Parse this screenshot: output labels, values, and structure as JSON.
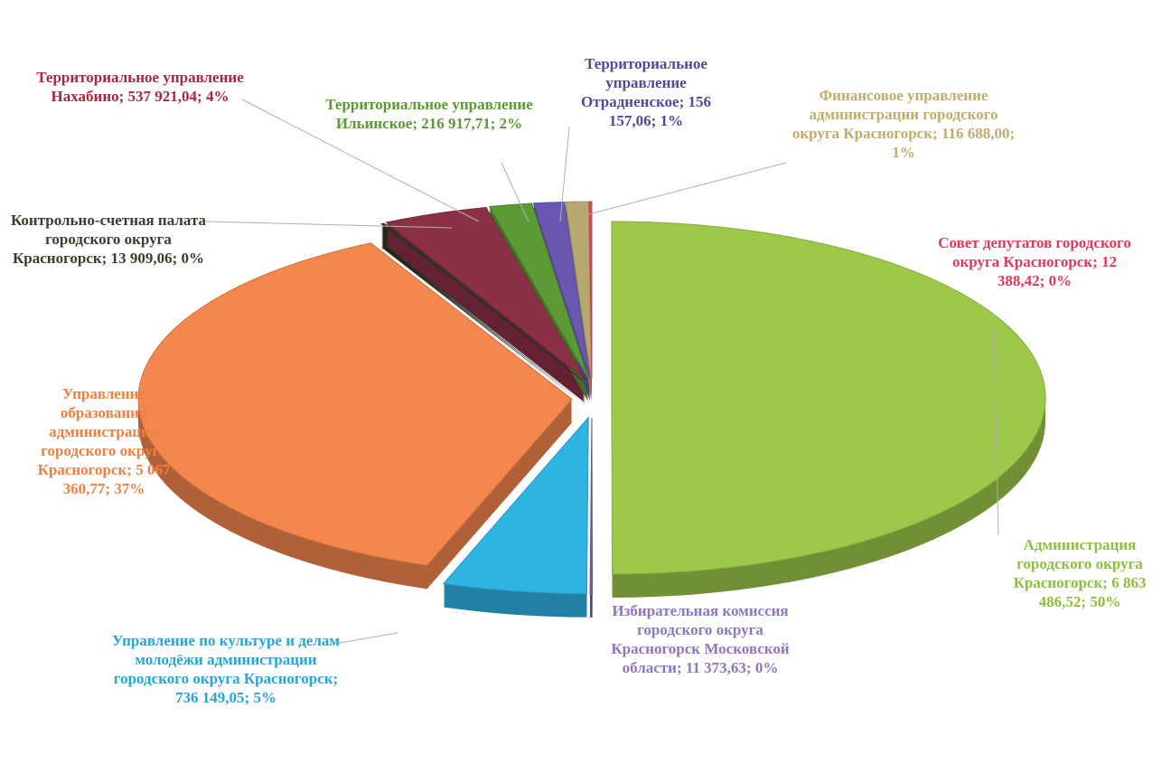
{
  "chart_data": {
    "type": "pie",
    "categories": [
      "Администрация городского округа Красногорск;",
      "Избирательная комиссия городского округа Красногорск Московской области;",
      "Управление по культуре и делам молодёжи администрации городского округа Красногорск;",
      "Управление образования администрации городского округа Красногорск;",
      "Контрольно-счетная палата городского округа Красногорск;",
      "Территориальное управление Нахабино;",
      "Территориальное управление Ильинское;",
      "Территориальное управление Отрадненское;",
      "Финансовое управление администрации городского округа Красногорск;",
      "Совет депутатов городского округа Красногорск;"
    ],
    "values": [
      6863486.52,
      11373.63,
      736149.05,
      5067360.77,
      13909.06,
      537921.04,
      216917.71,
      156157.06,
      116688.0,
      12388.42
    ],
    "value_labels": [
      "6 863 486,52; 50%",
      "11 373,63; 0%",
      "736 149,05; 5%",
      "5 067 360,77; 37%",
      "13 909,06; 0%",
      "537 921,04; 4%",
      "216 917,71; 2%",
      "156 157,06; 1%",
      "116 688,00; 1%",
      "12 388,42; 0%"
    ],
    "colors": [
      "#9dc84a",
      "#7a5cb0",
      "#2fb3e3",
      "#f4874e",
      "#2e3a26",
      "#8a3146",
      "#5c9a36",
      "#6a58b0",
      "#b7a870",
      "#e04a5a"
    ]
  }
}
